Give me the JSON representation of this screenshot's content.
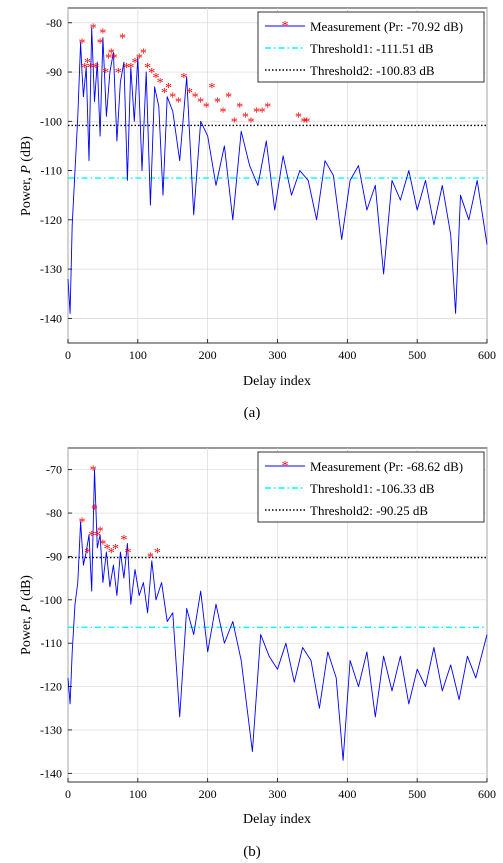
{
  "chart_data": [
    {
      "type": "line",
      "panel_label": "(a)",
      "xlabel": "Delay index",
      "ylabel": "Power, P (dB)",
      "xlim": [
        0,
        600
      ],
      "ylim": [
        -145,
        -77
      ],
      "xticks": [
        0,
        100,
        200,
        300,
        400,
        500,
        600
      ],
      "yticks": [
        -140,
        -130,
        -120,
        -110,
        -100,
        -90,
        -80
      ],
      "grid": true,
      "legend_position": "top-right",
      "series": [
        {
          "name": "Measurement (Pr: -70.92 dB)",
          "color": "#0000ff",
          "marker_color": "#ff0000",
          "x": [
            0,
            3,
            6,
            10,
            14,
            18,
            20,
            22,
            26,
            30,
            34,
            38,
            42,
            46,
            50,
            55,
            60,
            65,
            70,
            75,
            80,
            85,
            90,
            95,
            100,
            106,
            112,
            118,
            124,
            130,
            136,
            142,
            150,
            160,
            170,
            180,
            190,
            200,
            212,
            224,
            236,
            248,
            260,
            272,
            284,
            296,
            308,
            320,
            332,
            344,
            356,
            368,
            380,
            392,
            404,
            416,
            428,
            440,
            452,
            464,
            476,
            488,
            500,
            512,
            524,
            536,
            548,
            555,
            562,
            574,
            586,
            600
          ],
          "y": [
            -132,
            -139,
            -121,
            -110,
            -99,
            -84,
            -90,
            -95,
            -89,
            -108,
            -81,
            -96,
            -88,
            -103,
            -83,
            -99,
            -90,
            -86,
            -104,
            -92,
            -88,
            -112,
            -89,
            -100,
            -87,
            -110,
            -90,
            -117,
            -93,
            -97,
            -115,
            -95,
            -98,
            -108,
            -91,
            -119,
            -100,
            -103,
            -113,
            -105,
            -120,
            -102,
            -109,
            -113,
            -104,
            -118,
            -107,
            -115,
            -110,
            -112,
            -120,
            -108,
            -111,
            -124,
            -112,
            -109,
            -118,
            -113,
            -131,
            -112,
            -116,
            -110,
            -118,
            -112,
            -121,
            -113,
            -123,
            -139,
            -115,
            -120,
            -112,
            -125
          ]
        },
        {
          "name": "Threshold1: -111.51 dB",
          "color": "#00ffff",
          "value": -111.51
        },
        {
          "name": "Threshold2: -100.83 dB",
          "color": "#000000",
          "value": -100.83
        }
      ],
      "peaks": {
        "x": [
          20,
          24,
          28,
          32,
          36,
          40,
          46,
          50,
          54,
          58,
          62,
          66,
          72,
          78,
          84,
          90,
          96,
          102,
          108,
          114,
          120,
          126,
          132,
          138,
          144,
          150,
          158,
          166,
          174,
          182,
          190,
          198,
          206,
          214,
          222,
          230,
          238,
          246,
          254,
          262,
          270,
          278,
          286,
          330,
          338,
          342
        ],
        "y": [
          -84,
          -89,
          -88,
          -89,
          -81,
          -89,
          -84,
          -82,
          -90,
          -87,
          -86,
          -87,
          -90,
          -83,
          -89,
          -89,
          -88,
          -87,
          -86,
          -89,
          -90,
          -91,
          -92,
          -94,
          -93,
          -95,
          -96,
          -91,
          -94,
          -95,
          -96,
          -97,
          -93,
          -96,
          -98,
          -95,
          -100,
          -97,
          -99,
          -100,
          -98,
          -98,
          -97,
          -99,
          -100,
          -100
        ]
      }
    },
    {
      "type": "line",
      "panel_label": "(b)",
      "xlabel": "Delay index",
      "ylabel": "Power, P (dB)",
      "xlim": [
        0,
        600
      ],
      "ylim": [
        -142,
        -65
      ],
      "xticks": [
        0,
        100,
        200,
        300,
        400,
        500,
        600
      ],
      "yticks": [
        -140,
        -130,
        -120,
        -110,
        -100,
        -90,
        -80,
        -70
      ],
      "grid": true,
      "legend_position": "top-right",
      "series": [
        {
          "name": "Measurement (Pr: -68.62 dB)",
          "color": "#0000ff",
          "marker_color": "#ff0000",
          "x": [
            0,
            3,
            6,
            10,
            14,
            18,
            22,
            26,
            30,
            34,
            38,
            42,
            46,
            50,
            55,
            60,
            65,
            70,
            75,
            80,
            85,
            90,
            96,
            102,
            108,
            114,
            120,
            126,
            134,
            142,
            150,
            160,
            170,
            180,
            190,
            200,
            212,
            224,
            236,
            248,
            264,
            276,
            288,
            300,
            312,
            324,
            336,
            348,
            360,
            372,
            384,
            394,
            404,
            416,
            428,
            440,
            452,
            464,
            476,
            488,
            500,
            512,
            524,
            536,
            548,
            560,
            572,
            584,
            600
          ],
          "y": [
            -118,
            -124,
            -112,
            -101,
            -96,
            -82,
            -92,
            -89,
            -85,
            -98,
            -70,
            -88,
            -85,
            -96,
            -89,
            -97,
            -92,
            -99,
            -89,
            -95,
            -87,
            -101,
            -93,
            -99,
            -96,
            -103,
            -91,
            -100,
            -96,
            -105,
            -103,
            -127,
            -102,
            -108,
            -98,
            -112,
            -101,
            -110,
            -105,
            -114,
            -135,
            -108,
            -113,
            -116,
            -110,
            -119,
            -111,
            -114,
            -125,
            -112,
            -118,
            -137,
            -114,
            -120,
            -112,
            -127,
            -113,
            -121,
            -113,
            -124,
            -116,
            -120,
            -111,
            -121,
            -115,
            -123,
            -113,
            -118,
            -108
          ]
        },
        {
          "name": "Threshold1: -106.33 dB",
          "color": "#00ffff",
          "value": -106.33
        },
        {
          "name": "Threshold2: -90.25 dB",
          "color": "#000000",
          "value": -90.25
        }
      ],
      "peaks": {
        "x": [
          20,
          28,
          34,
          36,
          38,
          42,
          46,
          50,
          56,
          62,
          68,
          80,
          86,
          118,
          128
        ],
        "y": [
          -82,
          -89,
          -85,
          -70,
          -79,
          -85,
          -84,
          -87,
          -88,
          -89,
          -88,
          -86,
          -89,
          -90,
          -89
        ]
      }
    }
  ]
}
